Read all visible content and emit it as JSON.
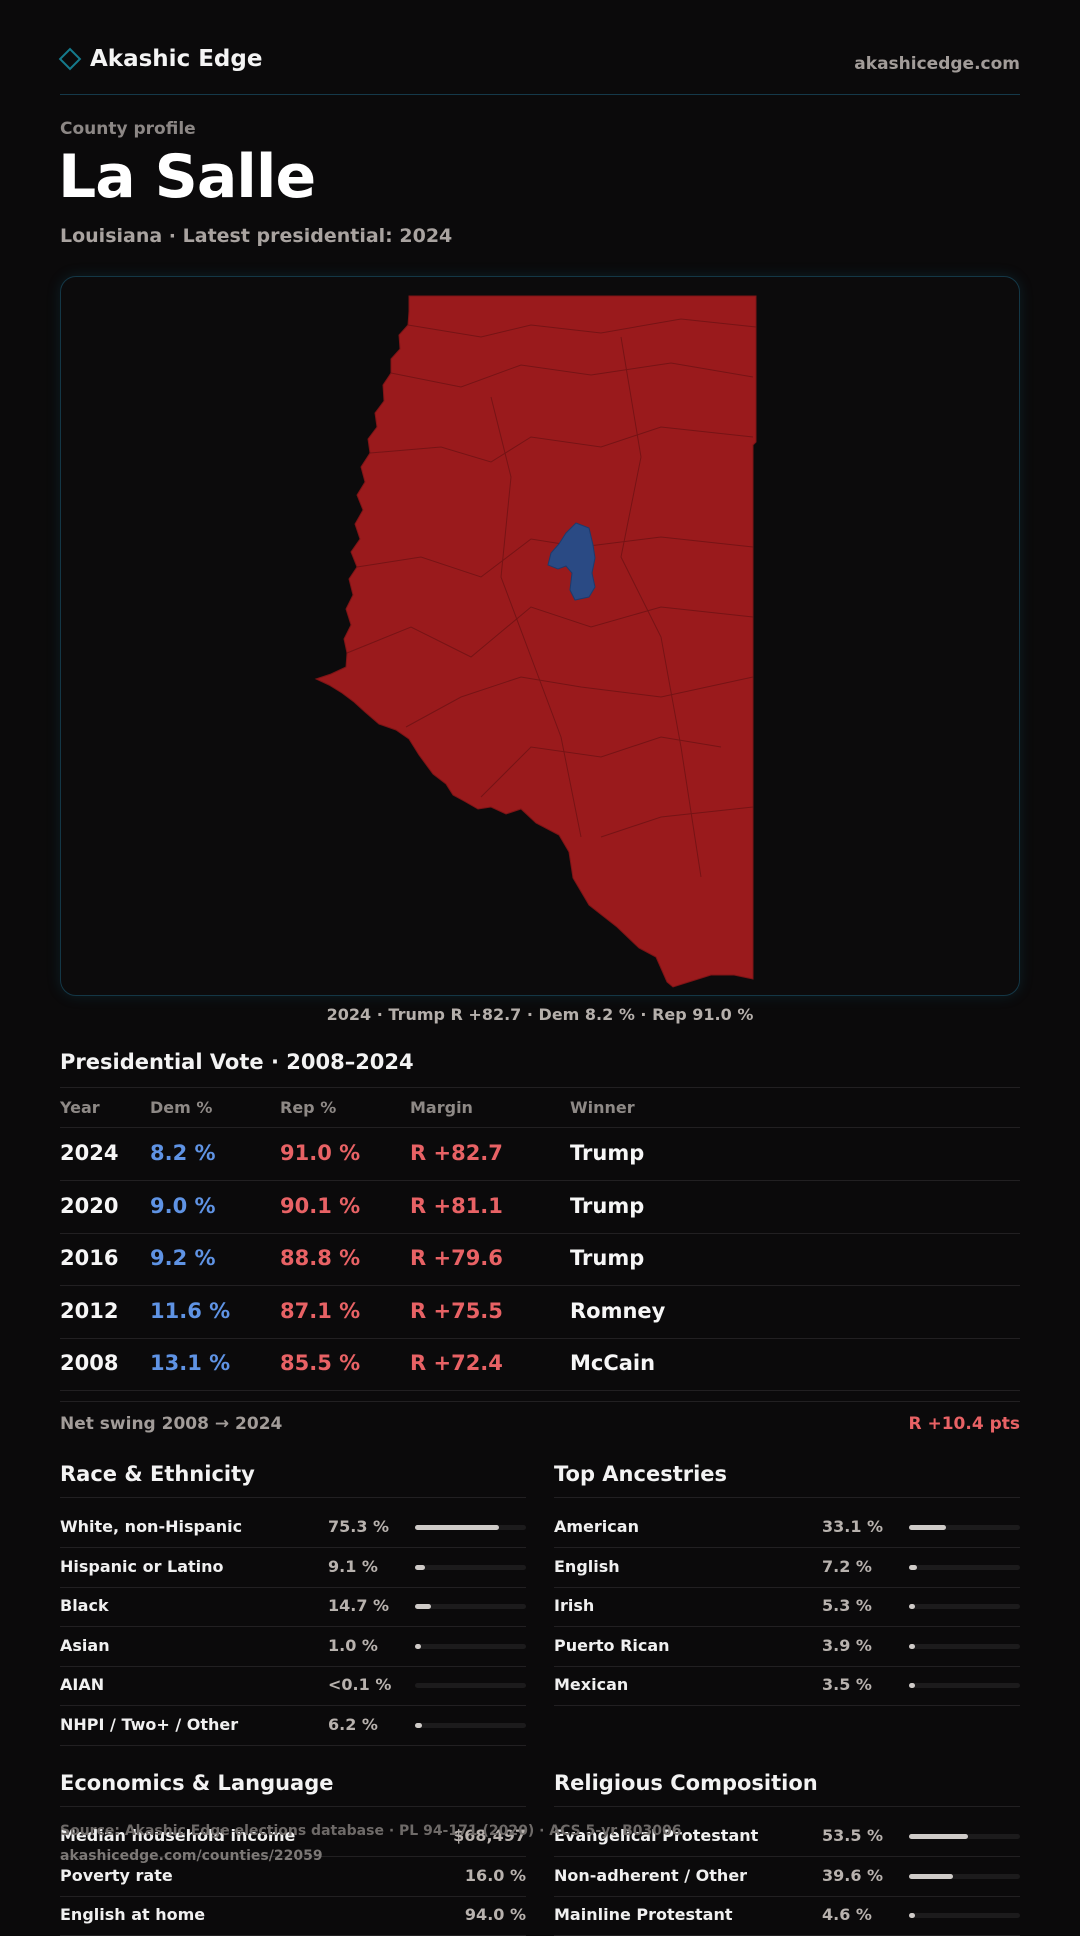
{
  "header": {
    "brand": "Akashic Edge",
    "site": "akashicedge.com"
  },
  "profile": {
    "eyebrow": "County profile",
    "title": "La Salle",
    "subtitle": "Louisiana · Latest presidential: 2024"
  },
  "map": {
    "caption": "2024 · Trump R +82.7 · Dem 8.2 % · Rep 91.0 %",
    "colors": {
      "rep": "#9a1a1c",
      "dem": "#2a4a84"
    }
  },
  "votes": {
    "title": "Presidential Vote · 2008–2024",
    "headers": {
      "year": "Year",
      "dem": "Dem %",
      "rep": "Rep %",
      "margin": "Margin",
      "winner": "Winner"
    },
    "rows": [
      {
        "year": "2024",
        "dem": "8.2 %",
        "rep": "91.0 %",
        "margin": "R +82.7",
        "winner": "Trump"
      },
      {
        "year": "2020",
        "dem": "9.0 %",
        "rep": "90.1 %",
        "margin": "R +81.1",
        "winner": "Trump"
      },
      {
        "year": "2016",
        "dem": "9.2 %",
        "rep": "88.8 %",
        "margin": "R +79.6",
        "winner": "Trump"
      },
      {
        "year": "2012",
        "dem": "11.6 %",
        "rep": "87.1 %",
        "margin": "R +75.5",
        "winner": "Romney"
      },
      {
        "year": "2008",
        "dem": "13.1 %",
        "rep": "85.5 %",
        "margin": "R +72.4",
        "winner": "McCain"
      }
    ],
    "swing_label": "Net swing 2008 → 2024",
    "swing_value": "R +10.4 pts"
  },
  "race": {
    "title": "Race & Ethnicity",
    "rows": [
      {
        "label": "White, non-Hispanic",
        "value": "75.3 %",
        "pct": 75.3
      },
      {
        "label": "Hispanic or Latino",
        "value": "9.1 %",
        "pct": 9.1
      },
      {
        "label": "Black",
        "value": "14.7 %",
        "pct": 14.7
      },
      {
        "label": "Asian",
        "value": "1.0 %",
        "pct": 1.0
      },
      {
        "label": "AIAN",
        "value": "<0.1 %",
        "pct": 0
      },
      {
        "label": "NHPI / Two+ / Other",
        "value": "6.2 %",
        "pct": 6.2
      }
    ]
  },
  "ancestry": {
    "title": "Top Ancestries",
    "rows": [
      {
        "label": "American",
        "value": "33.1 %",
        "pct": 33.1
      },
      {
        "label": "English",
        "value": "7.2 %",
        "pct": 7.2
      },
      {
        "label": "Irish",
        "value": "5.3 %",
        "pct": 5.3
      },
      {
        "label": "Puerto Rican",
        "value": "3.9 %",
        "pct": 3.9
      },
      {
        "label": "Mexican",
        "value": "3.5 %",
        "pct": 3.5
      }
    ]
  },
  "economics": {
    "title": "Economics & Language",
    "rows": [
      {
        "label": "Median household income",
        "value": "$68,497"
      },
      {
        "label": "Poverty rate",
        "value": "16.0 %"
      },
      {
        "label": "English at home",
        "value": "94.0 %"
      }
    ]
  },
  "religion": {
    "title": "Religious Composition",
    "rows": [
      {
        "label": "Evangelical Protestant",
        "value": "53.5 %",
        "pct": 53.5
      },
      {
        "label": "Non-adherent / Other",
        "value": "39.6 %",
        "pct": 39.6
      },
      {
        "label": "Mainline Protestant",
        "value": "4.6 %",
        "pct": 4.6
      }
    ]
  },
  "footer": {
    "source": "Source: Akashic Edge elections database · PL 94-171 (2020) · ACS 5-yr B03006",
    "url": "akashicedge.com/counties/22059"
  }
}
